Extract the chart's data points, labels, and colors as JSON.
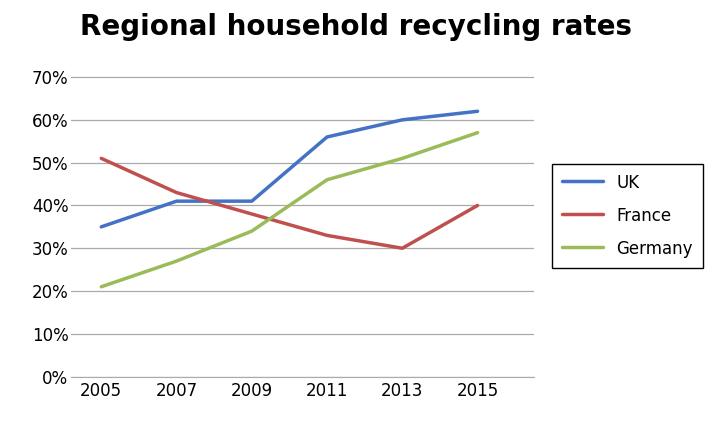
{
  "title": "Regional household recycling rates",
  "x_values": [
    2005,
    2007,
    2009,
    2011,
    2013,
    2015
  ],
  "series": {
    "UK": {
      "values": [
        0.35,
        0.41,
        0.41,
        0.56,
        0.6,
        0.62
      ],
      "color": "#4472C4",
      "linewidth": 2.5
    },
    "France": {
      "values": [
        0.51,
        0.43,
        0.38,
        0.33,
        0.3,
        0.4
      ],
      "color": "#C0504D",
      "linewidth": 2.5
    },
    "Germany": {
      "values": [
        0.21,
        0.27,
        0.34,
        0.46,
        0.51,
        0.57
      ],
      "color": "#9BBB59",
      "linewidth": 2.5
    }
  },
  "ylim": [
    0.0,
    0.75
  ],
  "yticks": [
    0.0,
    0.1,
    0.2,
    0.3,
    0.4,
    0.5,
    0.6,
    0.7
  ],
  "xticks": [
    2005,
    2007,
    2009,
    2011,
    2013,
    2015
  ],
  "xlim": [
    2004.2,
    2016.5
  ],
  "title_fontsize": 20,
  "title_fontweight": "bold",
  "background_color": "#ffffff",
  "grid_color": "#aaaaaa",
  "tick_label_fontsize": 12,
  "legend_fontsize": 12,
  "legend_handlelength": 2.5,
  "legend_labelspacing": 0.9,
  "legend_borderpad": 0.6
}
